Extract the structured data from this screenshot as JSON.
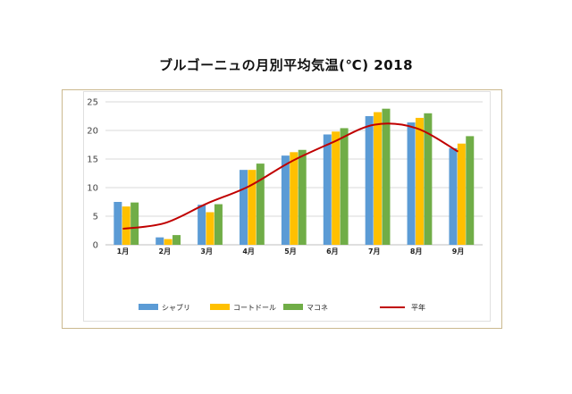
{
  "chart_data": {
    "type": "bar",
    "title": "ブルゴーニュの月別平均気温(℃) 2018",
    "categories": [
      "1月",
      "2月",
      "3月",
      "4月",
      "5月",
      "6月",
      "7月",
      "8月",
      "9月"
    ],
    "ylim": [
      0,
      25
    ],
    "yticks": [
      0,
      5,
      10,
      15,
      20,
      25
    ],
    "grid": true,
    "legend_position": "bottom",
    "series": [
      {
        "name": "シャブリ",
        "type": "bar",
        "color": "#5b9bd5",
        "values": [
          7.5,
          1.3,
          7.0,
          13.1,
          15.6,
          19.3,
          22.5,
          21.4,
          16.9
        ]
      },
      {
        "name": "コートドール",
        "type": "bar",
        "color": "#ffc000",
        "values": [
          6.7,
          1.0,
          5.7,
          13.1,
          16.2,
          19.8,
          23.2,
          22.2,
          17.7
        ]
      },
      {
        "name": "マコネ",
        "type": "bar",
        "color": "#70ad47",
        "values": [
          7.4,
          1.7,
          7.1,
          14.2,
          16.6,
          20.4,
          23.8,
          23.0,
          19.0
        ]
      },
      {
        "name": "平年",
        "type": "line",
        "color": "#c00000",
        "values": [
          2.8,
          3.8,
          7.2,
          10.2,
          14.5,
          17.9,
          21.0,
          20.4,
          16.3
        ]
      }
    ]
  }
}
